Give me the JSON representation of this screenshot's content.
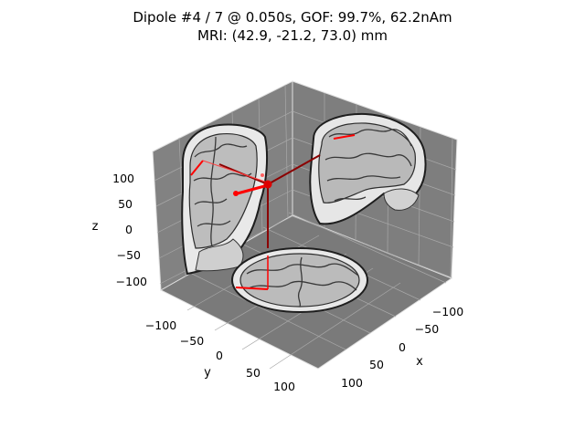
{
  "chart_data": {
    "type": "scatter",
    "title_lines": [
      "Dipole #4 / 7 @ 0.050s, GOF: 99.7%, 62.2nAm",
      "MRI: (42.9, -21.2, 73.0) mm"
    ],
    "projection": "3d",
    "xlabel": "x",
    "ylabel": "y",
    "zlabel": "z",
    "x_ticks": [
      "−100",
      "−50",
      "0",
      "50",
      "100"
    ],
    "y_ticks": [
      "−100",
      "−50",
      "0",
      "50",
      "100"
    ],
    "z_ticks": [
      "100",
      "50",
      "0",
      "−50",
      "−100"
    ],
    "x_range": [
      -128,
      128
    ],
    "y_range": [
      -128,
      128
    ],
    "z_range": [
      -128,
      128
    ],
    "grid": true,
    "pane_color": "#808080",
    "dipole_color": "#ff0000",
    "crosshair_color": "#8b0000",
    "active_dipole": {
      "x": 42.9,
      "y": -21.2,
      "z": 73.0
    }
  }
}
